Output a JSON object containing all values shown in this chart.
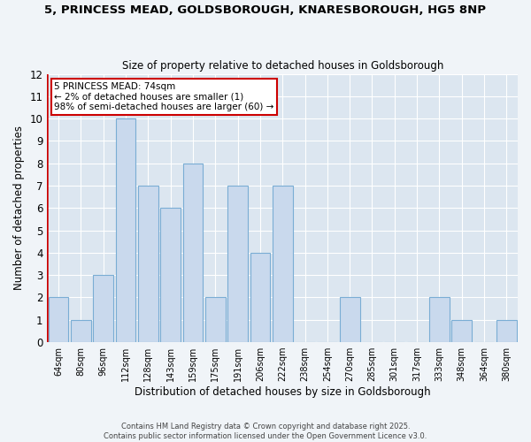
{
  "title_line1": "5, PRINCESS MEAD, GOLDSBOROUGH, KNARESBOROUGH, HG5 8NP",
  "title_line2": "Size of property relative to detached houses in Goldsborough",
  "xlabel": "Distribution of detached houses by size in Goldsborough",
  "ylabel": "Number of detached properties",
  "categories": [
    "64sqm",
    "80sqm",
    "96sqm",
    "112sqm",
    "128sqm",
    "143sqm",
    "159sqm",
    "175sqm",
    "191sqm",
    "206sqm",
    "222sqm",
    "238sqm",
    "254sqm",
    "270sqm",
    "285sqm",
    "301sqm",
    "317sqm",
    "333sqm",
    "348sqm",
    "364sqm",
    "380sqm"
  ],
  "values": [
    2,
    1,
    3,
    10,
    7,
    6,
    8,
    2,
    7,
    4,
    7,
    0,
    0,
    2,
    0,
    0,
    0,
    2,
    1,
    0,
    1
  ],
  "bar_color": "#c9d9ed",
  "bar_edge_color": "#7aadd4",
  "highlight_line_color": "#cc0000",
  "plot_bg_color": "#dce6f0",
  "fig_bg_color": "#f0f4f8",
  "grid_color": "#ffffff",
  "ylim": [
    0,
    12
  ],
  "yticks": [
    0,
    1,
    2,
    3,
    4,
    5,
    6,
    7,
    8,
    9,
    10,
    11,
    12
  ],
  "annotation_title": "5 PRINCESS MEAD: 74sqm",
  "annotation_line1": "← 2% of detached houses are smaller (1)",
  "annotation_line2": "98% of semi-detached houses are larger (60) →",
  "annotation_box_color": "#ffffff",
  "annotation_border_color": "#cc0000",
  "footer_line1": "Contains HM Land Registry data © Crown copyright and database right 2025.",
  "footer_line2": "Contains public sector information licensed under the Open Government Licence v3.0."
}
